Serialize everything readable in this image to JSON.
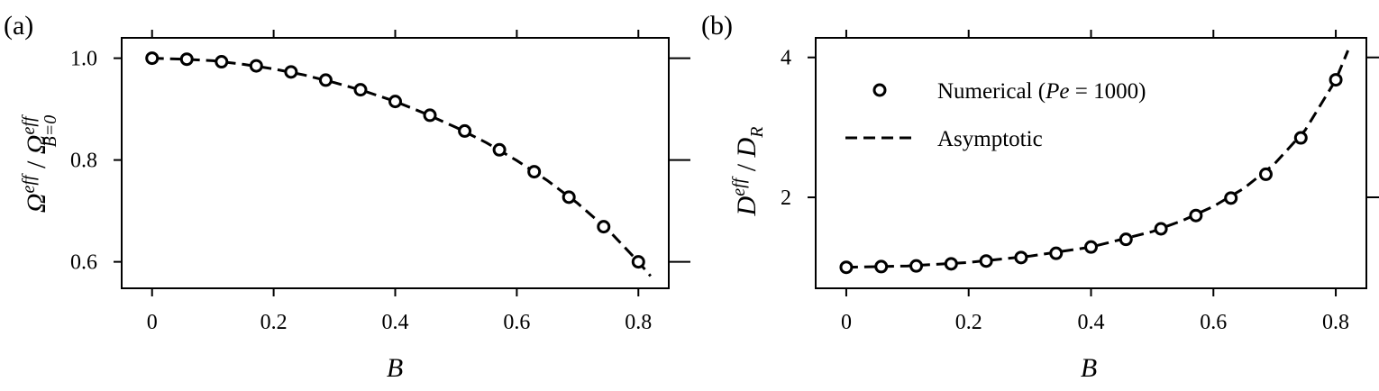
{
  "chart_data": [
    {
      "type": "scatter",
      "panel_label": "(a)",
      "xlabel": "B",
      "ylabel": {
        "base": "Ω",
        "sup": "eff",
        "sep": " / ",
        "base2": "Ω",
        "sup2": "eff",
        "sub2": "B=0"
      },
      "xlim": [
        -0.05,
        0.85
      ],
      "ylim": [
        0.548,
        1.04
      ],
      "xticks": [
        0,
        0.2,
        0.4,
        0.6,
        0.8
      ],
      "xtick_labels": [
        "0",
        "0.2",
        "0.4",
        "0.6",
        "0.8"
      ],
      "yticks": [
        0.6,
        0.8,
        1.0
      ],
      "ytick_labels": [
        "0.6",
        "0.8",
        "1.0"
      ],
      "series": [
        {
          "kind": "markers",
          "x": [
            0,
            0.0571,
            0.1143,
            0.1714,
            0.2286,
            0.2857,
            0.3429,
            0.4,
            0.4571,
            0.5143,
            0.5714,
            0.6286,
            0.6857,
            0.7429,
            0.8
          ],
          "y": [
            1.0,
            0.998,
            0.993,
            0.985,
            0.973,
            0.957,
            0.938,
            0.915,
            0.888,
            0.857,
            0.82,
            0.777,
            0.727,
            0.669,
            0.6
          ]
        },
        {
          "kind": "dashed-line",
          "x": [
            0,
            0.05,
            0.1,
            0.15,
            0.2,
            0.25,
            0.3,
            0.35,
            0.4,
            0.45,
            0.5,
            0.55,
            0.6,
            0.65,
            0.7,
            0.75,
            0.8,
            0.82
          ],
          "y": [
            1.0,
            0.998,
            0.995,
            0.988,
            0.979,
            0.967,
            0.952,
            0.935,
            0.915,
            0.891,
            0.864,
            0.834,
            0.799,
            0.76,
            0.715,
            0.663,
            0.6,
            0.572
          ]
        }
      ]
    },
    {
      "type": "scatter",
      "panel_label": "(b)",
      "xlabel": "B",
      "ylabel": {
        "base": "D",
        "sup": "eff",
        "sep": " / ",
        "base2": "D",
        "sub2": "R"
      },
      "xlim": [
        -0.05,
        0.85
      ],
      "ylim": [
        0.7,
        4.28
      ],
      "xticks": [
        0,
        0.2,
        0.4,
        0.6,
        0.8
      ],
      "xtick_labels": [
        "0",
        "0.2",
        "0.4",
        "0.6",
        "0.8"
      ],
      "yticks": [
        2,
        4
      ],
      "ytick_labels": [
        "2",
        "4"
      ],
      "legend": {
        "position": "upper-left",
        "entries": [
          {
            "kind": "markers",
            "text": "Numerical (",
            "italic": "Pe",
            "text_after": " = 1000)"
          },
          {
            "kind": "dashed-line",
            "text": "Asymptotic"
          }
        ]
      },
      "series": [
        {
          "kind": "markers",
          "x": [
            0,
            0.0571,
            0.1143,
            0.1714,
            0.2286,
            0.2857,
            0.3429,
            0.4,
            0.4571,
            0.5143,
            0.5714,
            0.6286,
            0.6857,
            0.7429,
            0.8
          ],
          "y": [
            1.0,
            1.01,
            1.02,
            1.05,
            1.09,
            1.14,
            1.2,
            1.29,
            1.4,
            1.55,
            1.74,
            1.99,
            2.33,
            2.85,
            3.68
          ]
        },
        {
          "kind": "dashed-line",
          "x": [
            0,
            0.1,
            0.2,
            0.3,
            0.4,
            0.5,
            0.55,
            0.6,
            0.65,
            0.7,
            0.75,
            0.8,
            0.82
          ],
          "y": [
            1.0,
            1.02,
            1.07,
            1.16,
            1.29,
            1.51,
            1.67,
            1.87,
            2.13,
            2.48,
            2.96,
            3.68,
            4.1
          ]
        }
      ]
    }
  ]
}
